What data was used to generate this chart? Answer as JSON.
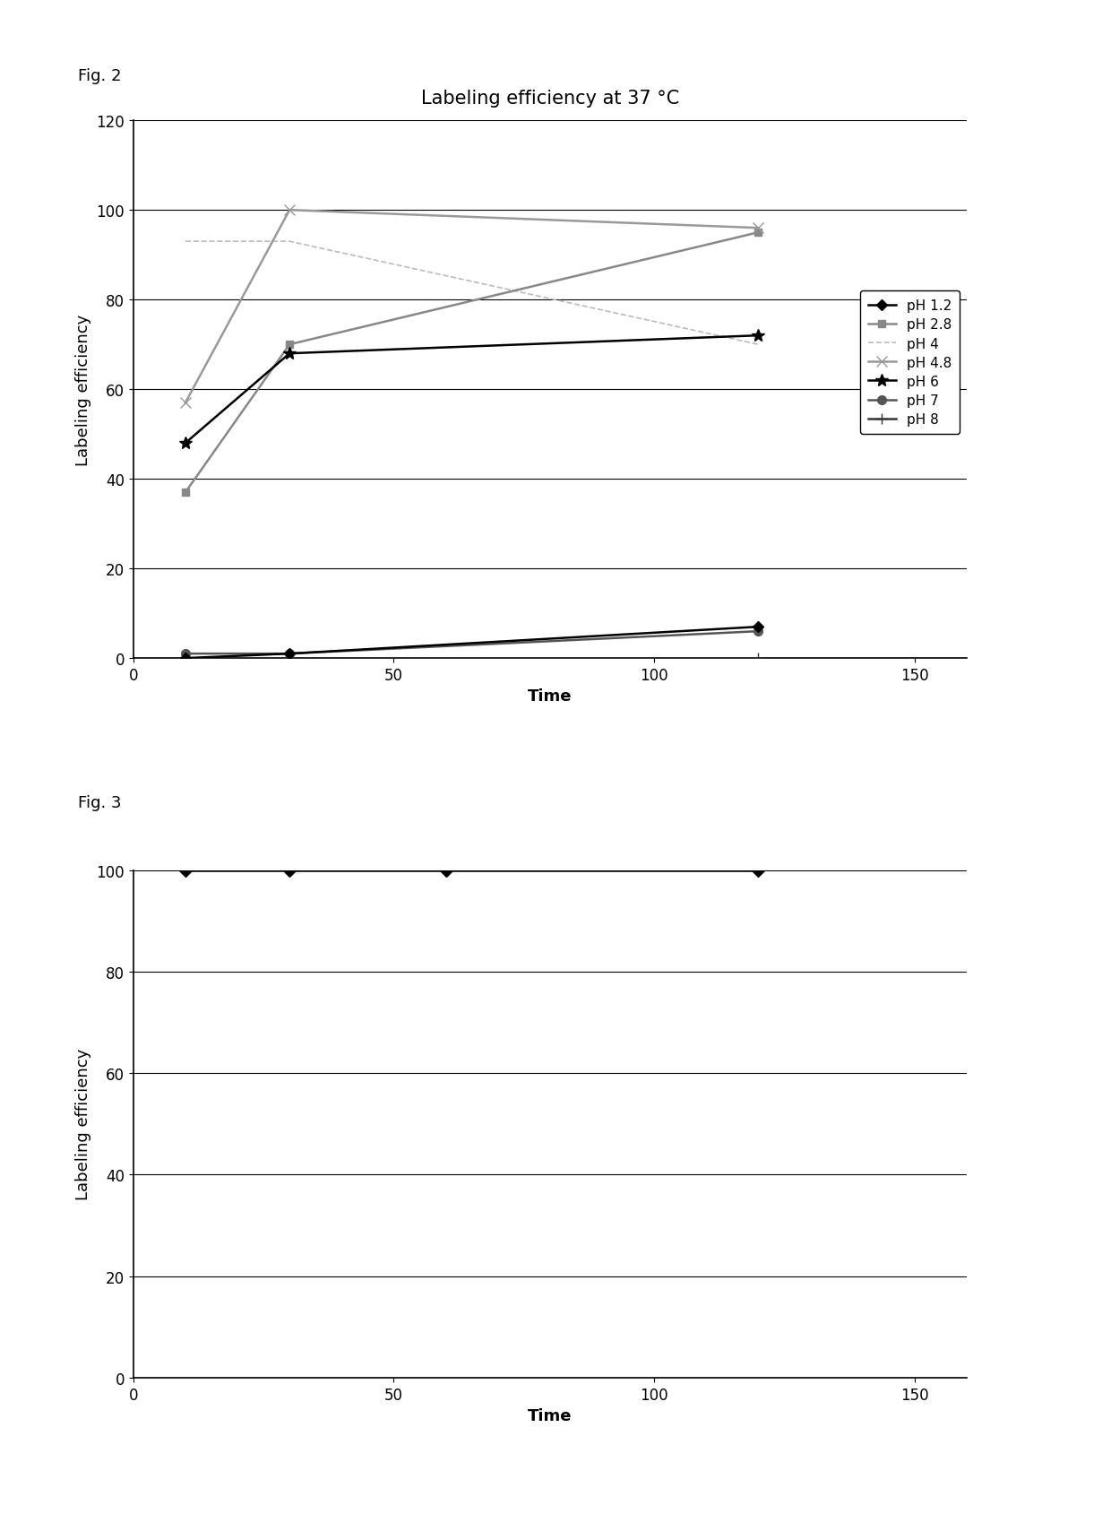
{
  "fig2": {
    "title": "Labeling efficiency at 37 °C",
    "xlabel": "Time",
    "ylabel": "Labeling efficiency",
    "xlim": [
      0,
      160
    ],
    "ylim": [
      0,
      120
    ],
    "xticks": [
      0,
      50,
      100,
      150
    ],
    "yticks": [
      0,
      20,
      40,
      60,
      80,
      100,
      120
    ],
    "series": [
      {
        "label": "pH 1.2",
        "x": [
          10,
          30,
          120
        ],
        "y": [
          0,
          1,
          7
        ],
        "color": "#000000",
        "marker": "D",
        "markersize": 6,
        "linestyle": "-",
        "linewidth": 1.8,
        "zorder": 5
      },
      {
        "label": "pH 2.8",
        "x": [
          10,
          30,
          120
        ],
        "y": [
          37,
          70,
          95
        ],
        "color": "#888888",
        "marker": "s",
        "markersize": 6,
        "linestyle": "-",
        "linewidth": 1.8,
        "zorder": 4
      },
      {
        "label": "pH 4",
        "x": [
          10,
          30,
          120
        ],
        "y": [
          93,
          93,
          70
        ],
        "color": "#bbbbbb",
        "marker": "None",
        "markersize": 5,
        "linestyle": "--",
        "linewidth": 1.2,
        "zorder": 3
      },
      {
        "label": "pH 4.8",
        "x": [
          10,
          30,
          120
        ],
        "y": [
          57,
          100,
          96
        ],
        "color": "#999999",
        "marker": "x",
        "markersize": 9,
        "linestyle": "-",
        "linewidth": 1.8,
        "zorder": 4
      },
      {
        "label": "pH 6",
        "x": [
          10,
          30,
          120
        ],
        "y": [
          48,
          68,
          72
        ],
        "color": "#000000",
        "marker": "*",
        "markersize": 10,
        "linestyle": "-",
        "linewidth": 1.8,
        "zorder": 4
      },
      {
        "label": "pH 7",
        "x": [
          10,
          30,
          120
        ],
        "y": [
          1,
          1,
          6
        ],
        "color": "#555555",
        "marker": "o",
        "markersize": 7,
        "linestyle": "-",
        "linewidth": 1.8,
        "zorder": 4
      },
      {
        "label": "pH 8",
        "x": [
          10,
          30,
          120
        ],
        "y": [
          0,
          0,
          0
        ],
        "color": "#333333",
        "marker": "+",
        "markersize": 9,
        "linestyle": "-",
        "linewidth": 1.8,
        "zorder": 4
      }
    ]
  },
  "fig3": {
    "xlabel": "Time",
    "ylabel": "Labeling efficiency",
    "xlim": [
      0,
      160
    ],
    "ylim": [
      0,
      100
    ],
    "xticks": [
      0,
      50,
      100,
      150
    ],
    "yticks": [
      0,
      20,
      40,
      60,
      80,
      100
    ],
    "series": [
      {
        "label": "pH 1.2",
        "x": [
          10,
          30,
          60,
          120
        ],
        "y": [
          100,
          100,
          100,
          100
        ],
        "color": "#000000",
        "marker": "D",
        "markersize": 7,
        "linestyle": "-",
        "linewidth": 1.8
      }
    ]
  },
  "fig2_label": "Fig. 2",
  "fig3_label": "Fig. 3",
  "background_color": "#ffffff",
  "font_color": "#000000",
  "title_fontsize": 15,
  "label_fontsize": 13,
  "tick_fontsize": 12,
  "legend_fontsize": 11,
  "fig_label_fontsize": 13
}
